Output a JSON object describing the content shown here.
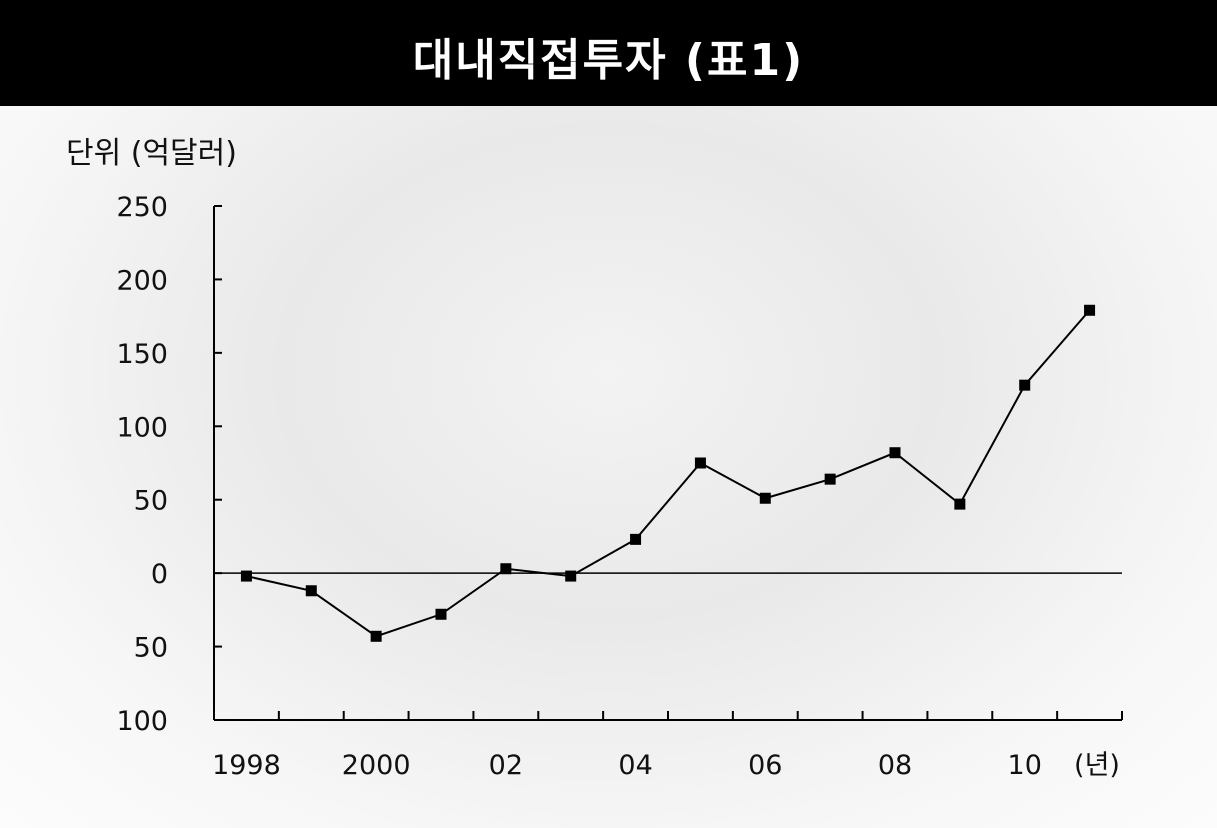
{
  "header": {
    "title": "대내직접투자 (표1)"
  },
  "chart_data": {
    "type": "line",
    "title": "대내직접투자 (표1)",
    "unit_label": "단위 (억달러)",
    "xlabel": "(년)",
    "ylabel": "",
    "x": [
      1998,
      1999,
      2000,
      2001,
      2002,
      2003,
      2004,
      2005,
      2006,
      2007,
      2008,
      2009,
      2010,
      2011
    ],
    "series": [
      {
        "values": [
          -2,
          -12,
          -43,
          -28,
          3,
          -2,
          23,
          75,
          51,
          64,
          82,
          47,
          128,
          179
        ]
      }
    ],
    "ylim": [
      -100,
      250
    ],
    "yticks": [
      250,
      200,
      150,
      100,
      50,
      0,
      -50,
      -100
    ],
    "ytick_labels": [
      "250",
      "200",
      "150",
      "100",
      "50",
      "0",
      "50",
      "100"
    ],
    "xtick_labels": [
      {
        "year": 1998,
        "label": "1998"
      },
      {
        "year": 2000,
        "label": "2000"
      },
      {
        "year": 2002,
        "label": "02"
      },
      {
        "year": 2004,
        "label": "04"
      },
      {
        "year": 2006,
        "label": "06"
      },
      {
        "year": 2008,
        "label": "08"
      },
      {
        "year": 2010,
        "label": "10"
      }
    ],
    "grid": false,
    "marker": "square",
    "line_color": "#000000"
  }
}
